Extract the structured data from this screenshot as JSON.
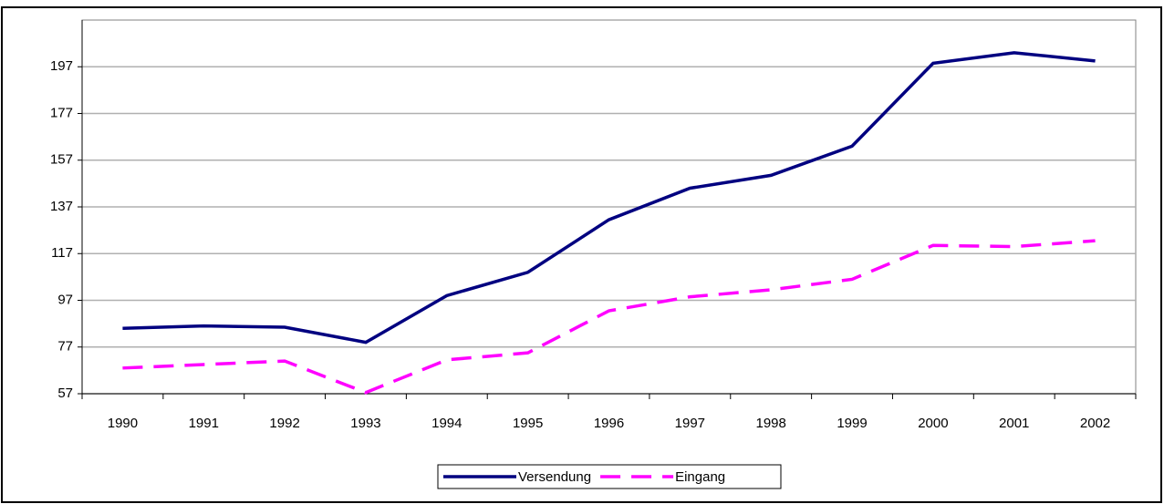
{
  "chart_data": {
    "type": "line",
    "categories": [
      "1990",
      "1991",
      "1992",
      "1993",
      "1994",
      "1995",
      "1996",
      "1997",
      "1998",
      "1999",
      "2000",
      "2001",
      "2002"
    ],
    "series": [
      {
        "name": "Versendung",
        "color": "#000080",
        "style": "solid",
        "values": [
          85,
          86,
          85.5,
          79,
          99,
          109,
          131.5,
          145,
          150.5,
          163,
          198.5,
          203,
          199.5
        ]
      },
      {
        "name": "Eingang",
        "color": "#ff00ff",
        "style": "dashed",
        "values": [
          68,
          69.5,
          71,
          57.5,
          71.5,
          74.5,
          92.5,
          98.5,
          101.5,
          106,
          120.5,
          120,
          122.5
        ]
      }
    ],
    "ylim": [
      57,
      217
    ],
    "yticks": [
      57,
      77,
      97,
      117,
      137,
      157,
      177,
      197
    ],
    "grid": true,
    "legend": "bottom"
  }
}
